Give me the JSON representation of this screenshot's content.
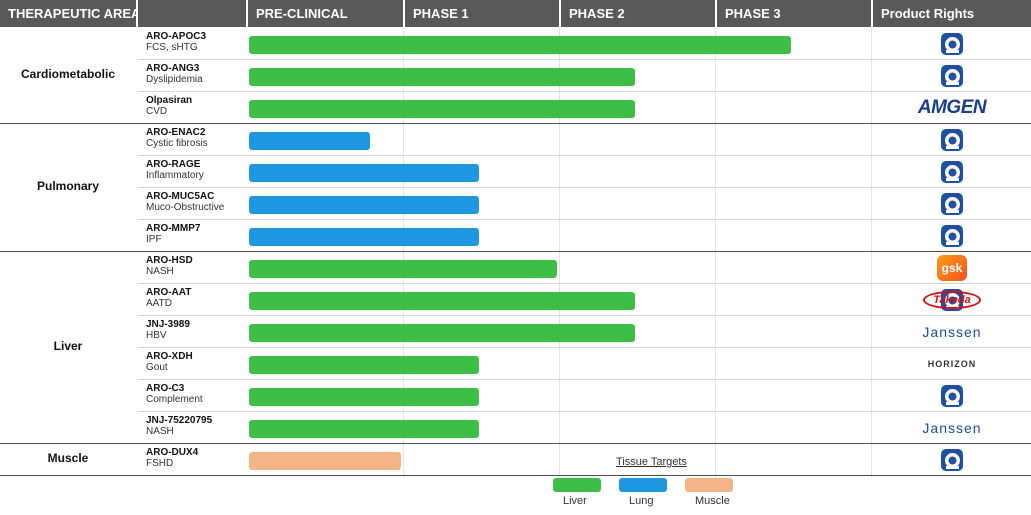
{
  "header": {
    "therapeutic_area": "THERAPEUTIC AREA",
    "phases": [
      "PRE-CLINICAL",
      "PHASE 1",
      "PHASE 2",
      "PHASE 3"
    ],
    "rights": "Product Rights"
  },
  "colors": {
    "header_bg": "#595959",
    "liver": "#3dbf47",
    "lung": "#1e96e0",
    "muscle": "#f3b487",
    "arrowhead_brand": "#1e4fa0"
  },
  "chart_data": {
    "type": "bar",
    "orientation": "horizontal",
    "x_unit": "development phase (0 = start of pre-clinical, 4 = end of phase 3)",
    "xlim": [
      0,
      4
    ],
    "phases": [
      "PRE-CLINICAL",
      "PHASE 1",
      "PHASE 2",
      "PHASE 3"
    ],
    "areas": [
      {
        "name": "Cardiometabolic",
        "rows": [
          0,
          2
        ]
      },
      {
        "name": "Pulmonary",
        "rows": [
          3,
          6
        ]
      },
      {
        "name": "Liver",
        "rows": [
          7,
          12
        ]
      },
      {
        "name": "Muscle",
        "rows": [
          13,
          13
        ]
      }
    ],
    "programs": [
      {
        "name": "ARO-APOC3",
        "indication": "FCS, sHTG",
        "value": 3.5,
        "tissue": "liver",
        "rights": [
          "arrowhead"
        ]
      },
      {
        "name": "ARO-ANG3",
        "indication": "Dyslipidemia",
        "value": 2.5,
        "tissue": "liver",
        "rights": [
          "arrowhead"
        ]
      },
      {
        "name": "Olpasiran",
        "indication": "CVD",
        "value": 2.5,
        "tissue": "liver",
        "rights": [
          "amgen"
        ]
      },
      {
        "name": "ARO-ENAC2",
        "indication": "Cystic fibrosis",
        "value": 0.8,
        "tissue": "lung",
        "rights": [
          "arrowhead"
        ]
      },
      {
        "name": "ARO-RAGE",
        "indication": "Inflammatory",
        "value": 1.5,
        "tissue": "lung",
        "rights": [
          "arrowhead"
        ]
      },
      {
        "name": "ARO-MUC5AC",
        "indication": "Muco-Obstructive",
        "value": 1.5,
        "tissue": "lung",
        "rights": [
          "arrowhead"
        ]
      },
      {
        "name": "ARO-MMP7",
        "indication": "IPF",
        "value": 1.5,
        "tissue": "lung",
        "rights": [
          "arrowhead"
        ]
      },
      {
        "name": "ARO-HSD",
        "indication": "NASH",
        "value": 2.0,
        "tissue": "liver",
        "rights": [
          "gsk"
        ]
      },
      {
        "name": "ARO-AAT",
        "indication": "AATD",
        "value": 2.5,
        "tissue": "liver",
        "rights": [
          "arrowhead",
          "takeda"
        ]
      },
      {
        "name": "JNJ-3989",
        "indication": "HBV",
        "value": 2.5,
        "tissue": "liver",
        "rights": [
          "janssen"
        ]
      },
      {
        "name": "ARO-XDH",
        "indication": "Gout",
        "value": 1.5,
        "tissue": "liver",
        "rights": [
          "horizon"
        ]
      },
      {
        "name": "ARO-C3",
        "indication": "Complement",
        "value": 1.5,
        "tissue": "liver",
        "rights": [
          "arrowhead"
        ]
      },
      {
        "name": "JNJ-75220795",
        "indication": "NASH",
        "value": 1.5,
        "tissue": "liver",
        "rights": [
          "janssen"
        ]
      },
      {
        "name": "ARO-DUX4",
        "indication": "FSHD",
        "value": 1.0,
        "tissue": "muscle",
        "rights": [
          "arrowhead"
        ]
      }
    ],
    "legend": {
      "title": "Tissue Targets",
      "items": [
        {
          "key": "liver",
          "label": "Liver"
        },
        {
          "key": "lung",
          "label": "Lung"
        },
        {
          "key": "muscle",
          "label": "Muscle"
        }
      ]
    }
  },
  "logos": {
    "amgen": "AMGEN",
    "gsk": "gsk",
    "janssen": "Janssen",
    "takeda": "Takeda",
    "horizon": "HORIZON",
    "arrowhead_icon": "arrowhead-logo-icon"
  }
}
